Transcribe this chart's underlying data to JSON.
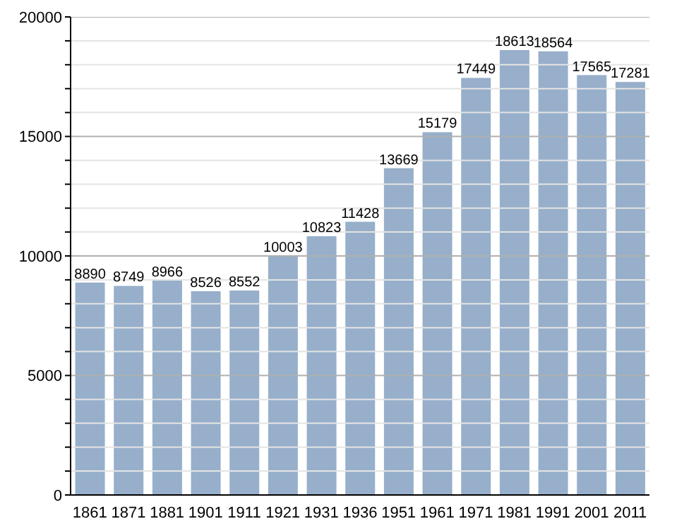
{
  "chart_data": {
    "type": "bar",
    "categories": [
      "1861",
      "1871",
      "1881",
      "1901",
      "1911",
      "1921",
      "1931",
      "1936",
      "1951",
      "1961",
      "1971",
      "1981",
      "1991",
      "2001",
      "2011"
    ],
    "values": [
      8890,
      8749,
      8966,
      8526,
      8552,
      10003,
      10823,
      11428,
      13669,
      15179,
      17449,
      18613,
      18564,
      17565,
      17281
    ],
    "color": "#97afca",
    "ylim": [
      0,
      20000
    ],
    "yticks": [
      0,
      {
        "value": 1000,
        "label": null
      },
      {
        "value": 2000,
        "label": null
      },
      {
        "value": 3000,
        "label": null
      },
      {
        "value": 4000,
        "label": null
      },
      5000,
      {
        "value": 6000,
        "label": null
      },
      {
        "value": 7000,
        "label": null
      },
      {
        "value": 8000,
        "label": null
      },
      {
        "value": 9000,
        "label": null
      },
      10000,
      {
        "value": 11000,
        "label": null
      },
      {
        "value": 12000,
        "label": null
      },
      {
        "value": 13000,
        "label": null
      },
      {
        "value": 14000,
        "label": null
      },
      15000,
      {
        "value": 16000,
        "label": null
      },
      {
        "value": 17000,
        "label": null
      },
      {
        "value": 18000,
        "label": null
      },
      {
        "value": 19000,
        "label": null
      },
      20000
    ],
    "grid": "y",
    "data_labels": true
  }
}
